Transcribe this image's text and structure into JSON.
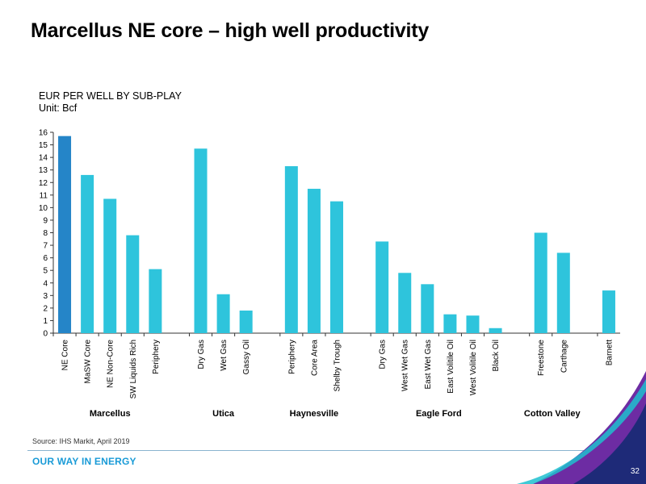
{
  "slide": {
    "title": "Marcellus NE core – high well productivity",
    "subtitle_line1": "EUR PER WELL BY SUB-PLAY",
    "subtitle_line2": "Unit: Bcf",
    "source": "Source: IHS Markit, April 2019",
    "brand": "OUR WAY IN ENERGY",
    "page_number": "32"
  },
  "colors": {
    "highlight_bar": "#2585c8",
    "bar": "#2ec4dc",
    "axis": "#333333",
    "brand": "#1a9bd7",
    "corner_dark": "#1e2a78",
    "corner_purple": "#6d2ca3",
    "corner_teal": "#1ec0cf"
  },
  "chart_data": {
    "type": "bar",
    "title": "EUR PER WELL BY SUB-PLAY",
    "ylabel": "Unit: Bcf",
    "ylim": [
      0,
      16
    ],
    "yticks": [
      "0",
      "1",
      "2",
      "3",
      "4",
      "5",
      "6",
      "7",
      "8",
      "9",
      "10",
      "11",
      "12",
      "13",
      "14",
      "15",
      "16"
    ],
    "grid": false,
    "groups": [
      {
        "name": "Marcellus",
        "categories": [
          "NE Core",
          "MaSW Core",
          "NE Non-Core",
          "SW Liquids Rich",
          "Periphery"
        ],
        "values": [
          15.7,
          12.6,
          10.7,
          7.8,
          5.1
        ]
      },
      {
        "name": "Utica",
        "categories": [
          "Dry Gas",
          "Wet Gas",
          "Gassy Oil"
        ],
        "values": [
          14.7,
          3.1,
          1.8
        ]
      },
      {
        "name": "Haynesville",
        "categories": [
          "Periphery",
          "Core Area",
          "Shelby Trough"
        ],
        "values": [
          13.3,
          11.5,
          10.5
        ]
      },
      {
        "name": "Eagle Ford",
        "categories": [
          "Dry Gas",
          "West Wet Gas",
          "East Wet Gas",
          "East Volitile Oil",
          "West Volitile Oil",
          "Black Oil"
        ],
        "values": [
          7.3,
          4.8,
          3.9,
          1.5,
          1.4,
          0.4
        ]
      },
      {
        "name": "Cotton Valley",
        "categories": [
          "Freestone",
          "Carthage"
        ],
        "values": [
          8.0,
          6.4
        ]
      },
      {
        "name": "",
        "categories": [
          "Barnett"
        ],
        "values": [
          3.4
        ]
      }
    ],
    "highlight": "NE Core"
  }
}
